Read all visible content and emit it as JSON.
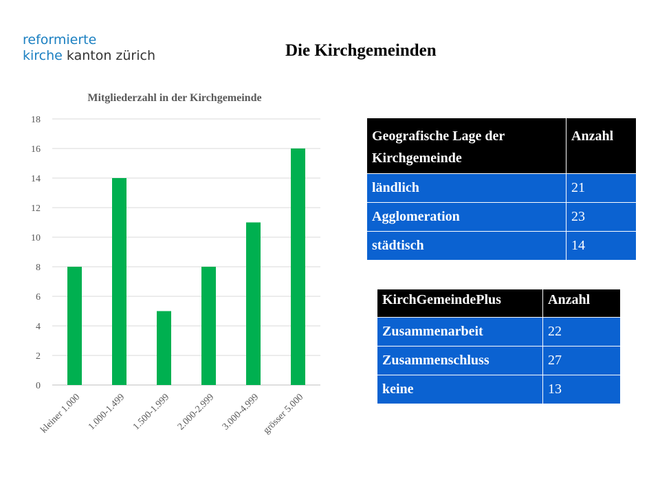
{
  "logo": {
    "line1": "reformierte",
    "line2a": "kirche",
    "line2b": " kanton zürich"
  },
  "page_title": "Die Kirchgemeinden",
  "chart_data": {
    "type": "bar",
    "title": "Mitgliederzahl in der Kirchgemeinde",
    "categories": [
      "kleiner 1.000",
      "1.000-1.499",
      "1.500-1.999",
      "2.000-2.999",
      "3.000-4.999",
      "grösser 5.000"
    ],
    "values": [
      8,
      14,
      5,
      8,
      11,
      16
    ],
    "ylim": [
      0,
      18
    ],
    "yticks": [
      0,
      2,
      4,
      6,
      8,
      10,
      12,
      14,
      16,
      18
    ],
    "grid": true,
    "color": "#00b050"
  },
  "table1": {
    "headers": [
      "Geografische Lage der Kirchgemeinde",
      "Anzahl"
    ],
    "rows": [
      [
        "ländlich",
        "21"
      ],
      [
        "Agglomeration",
        "23"
      ],
      [
        "städtisch",
        "14"
      ]
    ]
  },
  "table2": {
    "headers": [
      "KirchGemeindePlus",
      "Anzahl"
    ],
    "rows": [
      [
        "Zusammenarbeit",
        "22"
      ],
      [
        "Zusammenschluss",
        "27"
      ],
      [
        "keine",
        "13"
      ]
    ]
  }
}
